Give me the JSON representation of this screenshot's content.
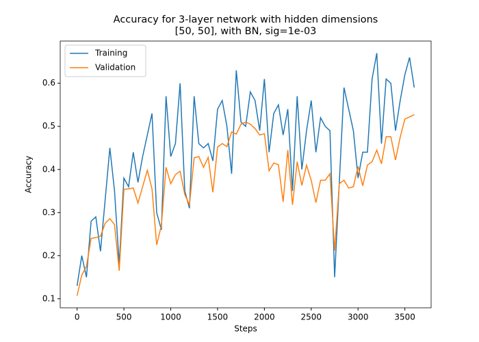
{
  "chart_data": {
    "type": "line",
    "title": [
      "Accuracy for 3-layer network with hidden dimensions",
      "[50, 50], with BN, sig=1e-03"
    ],
    "xlabel": "Steps",
    "ylabel": "Accuracy",
    "x": [
      0,
      50,
      100,
      150,
      200,
      250,
      300,
      350,
      400,
      450,
      500,
      550,
      600,
      650,
      700,
      750,
      800,
      850,
      900,
      950,
      1000,
      1050,
      1100,
      1150,
      1200,
      1250,
      1300,
      1350,
      1400,
      1450,
      1500,
      1550,
      1600,
      1650,
      1700,
      1750,
      1800,
      1850,
      1900,
      1950,
      2000,
      2050,
      2100,
      2150,
      2200,
      2250,
      2300,
      2350,
      2400,
      2450,
      2500,
      2550,
      2600,
      2650,
      2700,
      2750,
      2800,
      2850,
      2900,
      2950,
      3000,
      3050,
      3100,
      3150,
      3200,
      3250,
      3300,
      3350,
      3400,
      3450,
      3500,
      3550,
      3600
    ],
    "series": [
      {
        "name": "Training",
        "color": "#1f77b4",
        "values": [
          0.13,
          0.2,
          0.15,
          0.28,
          0.29,
          0.21,
          0.33,
          0.45,
          0.35,
          0.18,
          0.38,
          0.36,
          0.44,
          0.37,
          0.43,
          0.48,
          0.53,
          0.3,
          0.26,
          0.57,
          0.43,
          0.46,
          0.6,
          0.35,
          0.31,
          0.57,
          0.46,
          0.45,
          0.46,
          0.42,
          0.54,
          0.56,
          0.5,
          0.39,
          0.63,
          0.51,
          0.5,
          0.58,
          0.56,
          0.49,
          0.61,
          0.44,
          0.53,
          0.55,
          0.48,
          0.54,
          0.35,
          0.57,
          0.4,
          0.49,
          0.56,
          0.44,
          0.52,
          0.5,
          0.49,
          0.15,
          0.37,
          0.59,
          0.54,
          0.49,
          0.38,
          0.44,
          0.44,
          0.61,
          0.67,
          0.46,
          0.61,
          0.6,
          0.49,
          0.56,
          0.62,
          0.66,
          0.59
        ]
      },
      {
        "name": "Validation",
        "color": "#ff7f0e",
        "values": [
          0.107,
          0.155,
          0.175,
          0.24,
          0.242,
          0.245,
          0.275,
          0.286,
          0.272,
          0.165,
          0.354,
          0.355,
          0.357,
          0.322,
          0.36,
          0.398,
          0.355,
          0.225,
          0.27,
          0.405,
          0.367,
          0.388,
          0.396,
          0.342,
          0.318,
          0.427,
          0.43,
          0.405,
          0.428,
          0.347,
          0.452,
          0.46,
          0.453,
          0.487,
          0.482,
          0.505,
          0.51,
          0.505,
          0.495,
          0.48,
          0.483,
          0.397,
          0.415,
          0.411,
          0.325,
          0.445,
          0.318,
          0.418,
          0.363,
          0.41,
          0.375,
          0.323,
          0.375,
          0.375,
          0.39,
          0.212,
          0.367,
          0.375,
          0.357,
          0.36,
          0.407,
          0.362,
          0.41,
          0.418,
          0.445,
          0.413,
          0.476,
          0.476,
          0.422,
          0.475,
          0.517,
          0.522,
          0.527
        ]
      }
    ],
    "xlim": [
      -180,
      3780
    ],
    "ylim": [
      0.079,
      0.698
    ],
    "xticks": [
      0,
      500,
      1000,
      1500,
      2000,
      2500,
      3000,
      3500
    ],
    "yticks": [
      0.1,
      0.2,
      0.3,
      0.4,
      0.5,
      0.6
    ],
    "grid": false,
    "legend": "upper-left"
  }
}
